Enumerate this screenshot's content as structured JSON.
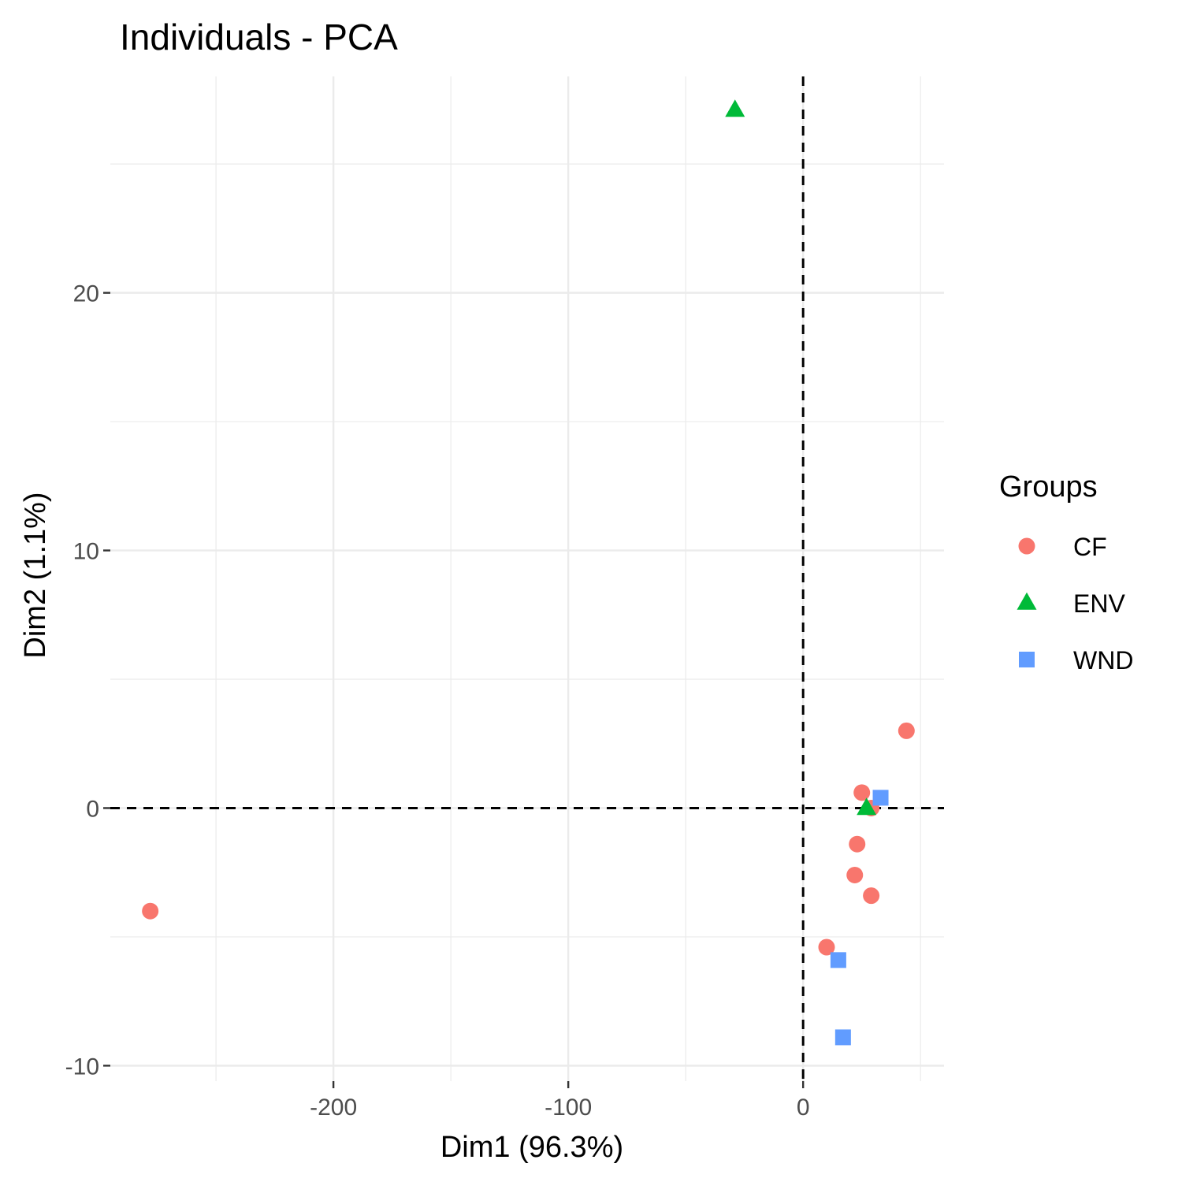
{
  "chart_data": {
    "type": "scatter",
    "title": "Individuals - PCA",
    "xlabel": "Dim1 (96.3%)",
    "ylabel": "Dim2 (1.1%)",
    "xlim": [
      -295,
      60
    ],
    "ylim": [
      -10.6,
      28.4
    ],
    "x_ticks": [
      -200,
      -100,
      0
    ],
    "y_ticks": [
      -10,
      0,
      10,
      20
    ],
    "grid": true,
    "reference_lines": {
      "x": 0,
      "y": 0,
      "style": "dashed"
    },
    "legend": {
      "title": "Groups",
      "position": "right"
    },
    "series": [
      {
        "name": "CF",
        "color": "#F8766D",
        "marker": "circle",
        "points": [
          {
            "x": -278,
            "y": -4.0
          },
          {
            "x": 44,
            "y": 3.0
          },
          {
            "x": 25,
            "y": 0.6
          },
          {
            "x": 29,
            "y": 0.0
          },
          {
            "x": 23,
            "y": -1.4
          },
          {
            "x": 22,
            "y": -2.6
          },
          {
            "x": 29,
            "y": -3.4
          },
          {
            "x": 10,
            "y": -5.4
          }
        ]
      },
      {
        "name": "ENV",
        "color": "#00BA38",
        "marker": "triangle",
        "points": [
          {
            "x": -29,
            "y": 27.1
          },
          {
            "x": 27,
            "y": 0.0
          }
        ]
      },
      {
        "name": "WND",
        "color": "#619CFF",
        "marker": "square",
        "points": [
          {
            "x": 33,
            "y": 0.4
          },
          {
            "x": 15,
            "y": -5.9
          },
          {
            "x": 17,
            "y": -8.9
          }
        ]
      }
    ]
  }
}
